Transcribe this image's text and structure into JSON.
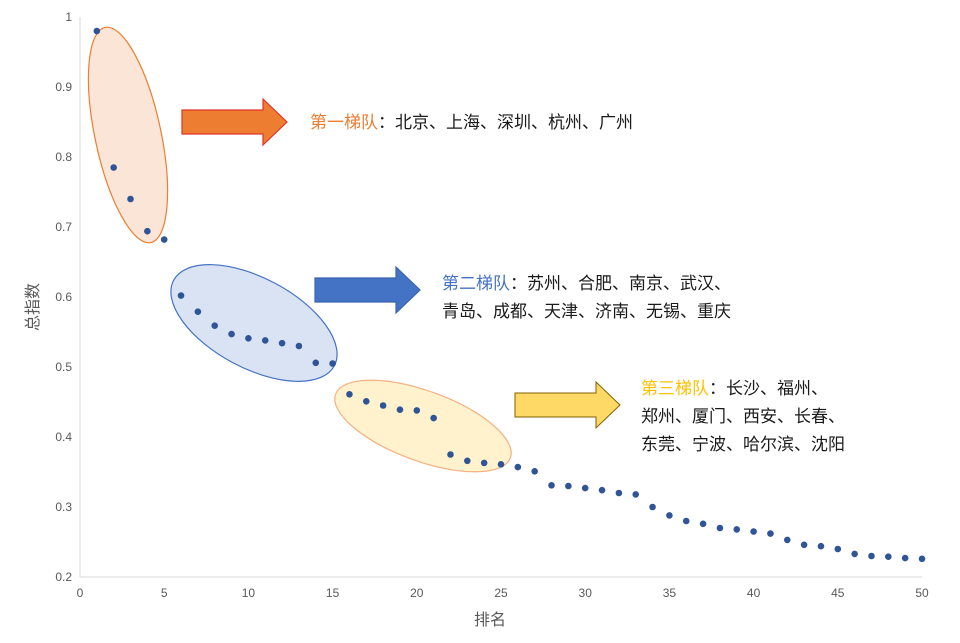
{
  "chart_data": {
    "type": "scatter",
    "xlabel": "排名",
    "ylabel": "总指数",
    "xlim": [
      0,
      50
    ],
    "ylim": [
      0.2,
      1
    ],
    "xticks": [
      "0",
      "5",
      "10",
      "15",
      "20",
      "25",
      "30",
      "35",
      "40",
      "45",
      "50"
    ],
    "yticks": [
      "0.2",
      "0.3",
      "0.4",
      "0.5",
      "0.6",
      "0.7",
      "0.8",
      "0.9",
      "1"
    ],
    "marker_color": "#2f5597",
    "x": [
      1,
      2,
      3,
      4,
      5,
      6,
      7,
      8,
      9,
      10,
      11,
      12,
      13,
      14,
      15,
      16,
      17,
      18,
      19,
      20,
      21,
      22,
      23,
      24,
      25,
      26,
      27,
      28,
      29,
      30,
      31,
      32,
      33,
      34,
      35,
      36,
      37,
      38,
      39,
      40,
      41,
      42,
      43,
      44,
      45,
      46,
      47,
      48,
      49,
      50
    ],
    "y": [
      0.98,
      0.785,
      0.74,
      0.694,
      0.682,
      0.602,
      0.579,
      0.559,
      0.547,
      0.541,
      0.538,
      0.534,
      0.53,
      0.506,
      0.505,
      0.461,
      0.451,
      0.445,
      0.439,
      0.438,
      0.427,
      0.375,
      0.366,
      0.363,
      0.361,
      0.357,
      0.351,
      0.331,
      0.33,
      0.327,
      0.324,
      0.32,
      0.318,
      0.3,
      0.288,
      0.28,
      0.276,
      0.27,
      0.268,
      0.265,
      0.262,
      0.253,
      0.246,
      0.244,
      0.24,
      0.233,
      0.23,
      0.229,
      0.227,
      0.226
    ],
    "tiers": [
      {
        "label": "第一梯队",
        "separator": "：",
        "lines": [
          "北京、上海、深圳、杭州、广州"
        ],
        "label_color": "#ed7d31",
        "arrow_color": "#ed7d31",
        "fill": "#fbe5d6",
        "stroke": "#ed7d31"
      },
      {
        "label": "第二梯队",
        "separator": "：",
        "lines": [
          "苏州、合肥、南京、武汉、",
          "青岛、成都、天津、济南、无锡、重庆"
        ],
        "label_color": "#4472c4",
        "arrow_color": "#4472c4",
        "fill": "#dae3f3",
        "stroke": "#4472c4"
      },
      {
        "label": "第三梯队",
        "separator": "：",
        "lines": [
          "长沙、福州、",
          "郑州、厦门、西安、长春、",
          "东莞、宁波、哈尔滨、沈阳"
        ],
        "label_color": "#ffc000",
        "arrow_color": "#ffd966",
        "fill": "#fff2cc",
        "stroke": "#f4b183"
      }
    ]
  }
}
